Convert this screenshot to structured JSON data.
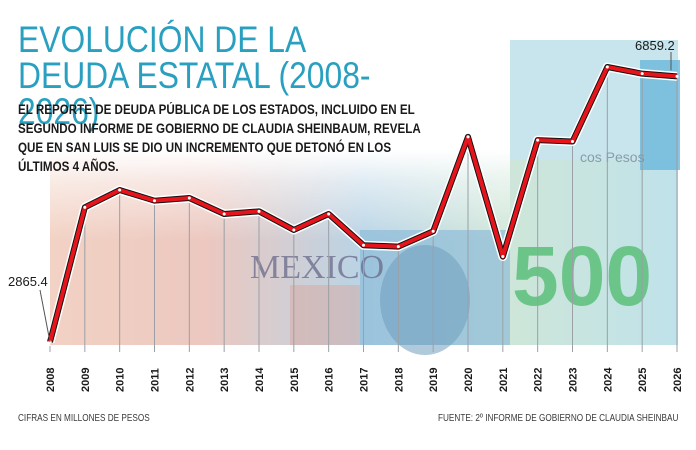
{
  "header": {
    "title": "EVOLUCIÓN DE LA DEUDA ESTATAL (2008-2026)",
    "subtitle": "EL REPORTE DE DEUDA PÚBLICA DE LOS ESTADOS, INCLUIDO EN EL SEGUNDO INFORME DE GOBIERNO DE CLAUDIA SHEINBAUM, REVELA QUE EN SAN LUIS SE DIO UN INCREMENTO QUE DETONÓ EN LOS ÚLTIMOS 4 AÑOS."
  },
  "footer": {
    "units_note": "CIFRAS EN MILLONES DE PESOS",
    "source": "FUENTE: 2º INFORME DE GOBIERNO DE CLAUDIA SHEINBAU"
  },
  "banknote": {
    "text_mexico": "MEXICO",
    "text_500": "500",
    "text_pesos": "cos Pesos"
  },
  "colors": {
    "title": "#2aa0c0",
    "line": "#e8141c",
    "grid": "#9aa0a6"
  },
  "chart_data": {
    "type": "line",
    "title": "EVOLUCIÓN DE LA DEUDA ESTATAL (2008-2026)",
    "xlabel": "",
    "ylabel": "",
    "x": [
      "2008",
      "2009",
      "2010",
      "2011",
      "2012",
      "2013",
      "2014",
      "2015",
      "2016",
      "2017",
      "2018",
      "2019",
      "2020",
      "2021",
      "2022",
      "2023",
      "2024",
      "2025",
      "2026"
    ],
    "series": [
      {
        "values": [
          2865.4,
          4890,
          5150,
          4990,
          5030,
          4790,
          4830,
          4550,
          4790,
          4320,
          4300,
          4530,
          5950,
          4150,
          5900,
          5880,
          7000,
          6900,
          6859.2
        ]
      }
    ],
    "data_labels": [
      {
        "index": 0,
        "text": "2865.4"
      },
      {
        "index": 18,
        "text": "6859.2"
      }
    ],
    "ylim": [
      2865.4,
      7000
    ],
    "grid": "vertical"
  }
}
